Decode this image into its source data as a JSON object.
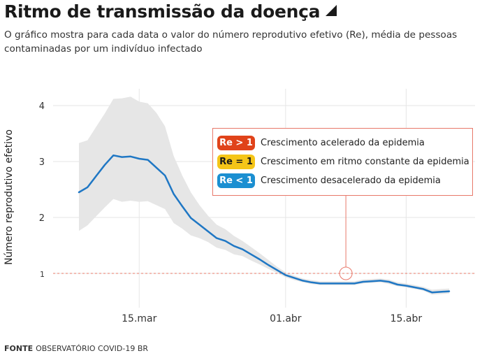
{
  "header": {
    "title": "Ritmo de transmissão da doença",
    "subtitle": "O gráfico mostra para cada data o valor do número reprodutivo efetivo (Re), média de pessoas contaminadas por um indivíduo infectado"
  },
  "footer": {
    "source_label": "FONTE",
    "source_text": "OBSERVATÓRIO COVID-19 BR"
  },
  "legend": {
    "items": [
      {
        "badge": "Re > 1",
        "text": "Crescimento acelerado da epidemia",
        "color": "#e0431a",
        "text_color": "#ffffff"
      },
      {
        "badge": "Re = 1",
        "text": "Crescimento em ritmo constante da epidemia",
        "color": "#f5c518",
        "text_color": "#1a1a1a"
      },
      {
        "badge": "Re < 1",
        "text": "Crescimento desacelerado da epidemia",
        "color": "#1b8fd1",
        "text_color": "#ffffff"
      }
    ]
  },
  "colors": {
    "line": "#1f77c4",
    "band": "#e6e6e6",
    "threshold": "#e8786a",
    "grid": "#e6e6e6"
  },
  "chart_data": {
    "type": "line",
    "title": "Ritmo de transmissão da doença",
    "ylabel": "Número reprodutivo efetivo",
    "xlabel": "",
    "ylim": [
      0.6,
      4.25
    ],
    "yticks": [
      1,
      2,
      3,
      4
    ],
    "xtick_labels": [
      {
        "date": "2020-03-15",
        "label": "15.mar"
      },
      {
        "date": "2020-04-01",
        "label": "01.abr"
      },
      {
        "date": "2020-04-15",
        "label": "15.abr"
      }
    ],
    "threshold": 1,
    "grid": true,
    "series": [
      {
        "values": [
          [
            "2020-03-08",
            2.45
          ],
          [
            "2020-03-09",
            2.54
          ],
          [
            "2020-03-10",
            2.74
          ],
          [
            "2020-03-11",
            2.94
          ],
          [
            "2020-03-12",
            3.11
          ],
          [
            "2020-03-13",
            3.08
          ],
          [
            "2020-03-14",
            3.09
          ],
          [
            "2020-03-15",
            3.05
          ],
          [
            "2020-03-16",
            3.03
          ],
          [
            "2020-03-17",
            2.89
          ],
          [
            "2020-03-18",
            2.75
          ],
          [
            "2020-03-19",
            2.42
          ],
          [
            "2020-03-20",
            2.2
          ],
          [
            "2020-03-21",
            1.99
          ],
          [
            "2020-03-22",
            1.87
          ],
          [
            "2020-03-23",
            1.75
          ],
          [
            "2020-03-24",
            1.63
          ],
          [
            "2020-03-25",
            1.58
          ],
          [
            "2020-03-26",
            1.49
          ],
          [
            "2020-03-27",
            1.43
          ],
          [
            "2020-03-28",
            1.34
          ],
          [
            "2020-03-29",
            1.25
          ],
          [
            "2020-03-30",
            1.15
          ],
          [
            "2020-03-31",
            1.06
          ],
          [
            "2020-04-01",
            0.97
          ],
          [
            "2020-04-02",
            0.92
          ],
          [
            "2020-04-03",
            0.87
          ],
          [
            "2020-04-04",
            0.84
          ],
          [
            "2020-04-05",
            0.82
          ],
          [
            "2020-04-06",
            0.82
          ],
          [
            "2020-04-07",
            0.82
          ],
          [
            "2020-04-08",
            0.82
          ],
          [
            "2020-04-09",
            0.82
          ],
          [
            "2020-04-10",
            0.85
          ],
          [
            "2020-04-11",
            0.86
          ],
          [
            "2020-04-12",
            0.87
          ],
          [
            "2020-04-13",
            0.85
          ],
          [
            "2020-04-14",
            0.8
          ],
          [
            "2020-04-15",
            0.78
          ],
          [
            "2020-04-16",
            0.75
          ],
          [
            "2020-04-17",
            0.72
          ],
          [
            "2020-04-18",
            0.66
          ],
          [
            "2020-04-19",
            0.67
          ],
          [
            "2020-04-20",
            0.68
          ]
        ],
        "upper": [
          3.33,
          3.38,
          3.62,
          3.86,
          4.12,
          4.13,
          4.16,
          4.07,
          4.04,
          3.87,
          3.63,
          3.1,
          2.75,
          2.45,
          2.22,
          2.03,
          1.87,
          1.79,
          1.67,
          1.58,
          1.47,
          1.36,
          1.24,
          1.12,
          1.02,
          0.96,
          0.91,
          0.88,
          0.86,
          0.86,
          0.86,
          0.86,
          0.86,
          0.89,
          0.9,
          0.91,
          0.89,
          0.84,
          0.82,
          0.79,
          0.76,
          0.71,
          0.72,
          0.73
        ],
        "lower": [
          1.76,
          1.86,
          2.02,
          2.18,
          2.33,
          2.28,
          2.3,
          2.28,
          2.29,
          2.22,
          2.15,
          1.9,
          1.8,
          1.68,
          1.63,
          1.56,
          1.46,
          1.42,
          1.34,
          1.31,
          1.23,
          1.16,
          1.08,
          1.01,
          0.93,
          0.88,
          0.84,
          0.81,
          0.79,
          0.79,
          0.79,
          0.79,
          0.79,
          0.82,
          0.83,
          0.84,
          0.81,
          0.77,
          0.75,
          0.72,
          0.69,
          0.62,
          0.63,
          0.64
        ]
      }
    ],
    "callout_date": "2020-04-08"
  }
}
